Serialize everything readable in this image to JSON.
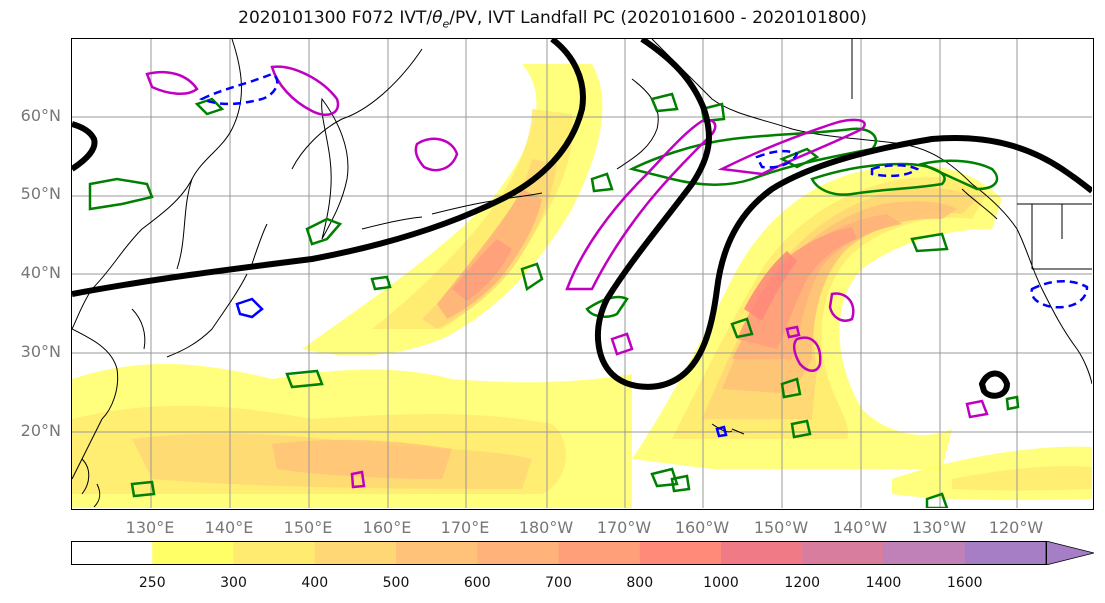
{
  "title_pre": "2020101300 F072 IVT/",
  "title_theta": "θ",
  "title_sub": "e",
  "title_post": "/PV, IVT Landfall PC (2020101600 - 2020101800)",
  "lat_labels": [
    "60°N",
    "50°N",
    "40°N",
    "30°N",
    "20°N"
  ],
  "lon_labels": [
    "130°E",
    "140°E",
    "150°E",
    "160°E",
    "170°E",
    "180°W",
    "170°W",
    "160°W",
    "150°W",
    "140°W",
    "130°W",
    "120°W"
  ],
  "colorbar": {
    "levels": [
      250,
      300,
      400,
      500,
      600,
      700,
      800,
      1000,
      1200,
      1400,
      1600
    ],
    "tick_labels": [
      "250",
      "300",
      "400",
      "500",
      "600",
      "700",
      "800",
      "1000",
      "1200",
      "1400",
      "1600"
    ],
    "colors": [
      "#ffffff",
      "#ffff66",
      "#ffeb70",
      "#ffd774",
      "#ffc278",
      "#ffb27a",
      "#ff9f7a",
      "#ff8a7a",
      "#f07b86",
      "#d97d9e",
      "#c080b8",
      "#a67ec6"
    ],
    "extend": "max"
  },
  "legend_colors": {
    "ivt_landfall_pc": "#000000",
    "theta_e_contour": "#008000",
    "pv_positive": "#c000c0",
    "pv_negative": "#0000ff",
    "coastline": "#000000"
  },
  "features": {
    "ivt_filled_contours": true,
    "gridlines": true
  }
}
